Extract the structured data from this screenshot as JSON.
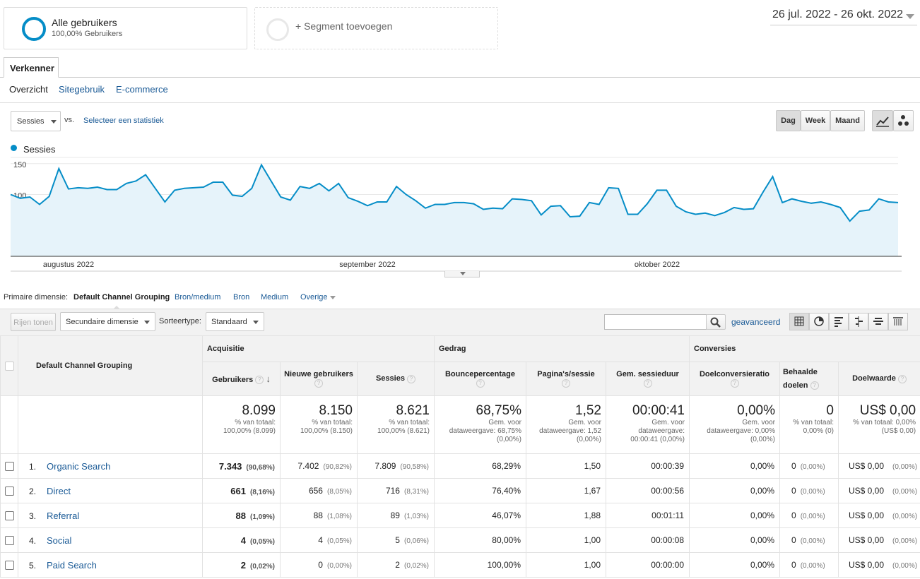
{
  "segments": {
    "all_title": "Alle gebruikers",
    "all_sub": "100,00% Gebruikers",
    "add_label": "+ Segment toevoegen"
  },
  "date_range": "26 jul. 2022 - 26 okt. 2022",
  "tab": "Verkenner",
  "subtabs": [
    "Overzicht",
    "Sitegebruik",
    "E-commerce"
  ],
  "chart_controls": {
    "metric": "Sessies",
    "vs": "vs.",
    "select_metric": "Selecteer een statistiek",
    "periods": [
      "Dag",
      "Week",
      "Maand"
    ],
    "active_period": "Dag"
  },
  "chart_data": {
    "type": "line",
    "series": [
      {
        "name": "Sessies",
        "color": "#058dc7",
        "values": [
          100,
          94,
          96,
          84,
          97,
          142,
          109,
          111,
          110,
          112,
          108,
          108,
          118,
          122,
          132,
          110,
          88,
          107,
          110,
          111,
          112,
          120,
          120,
          99,
          97,
          110,
          148,
          122,
          96,
          91,
          113,
          110,
          118,
          106,
          118,
          95,
          89,
          82,
          88,
          88,
          113,
          100,
          90,
          78,
          84,
          84,
          87,
          87,
          85,
          76,
          78,
          77,
          93,
          92,
          90,
          67,
          81,
          82,
          64,
          65,
          87,
          84,
          111,
          110,
          68,
          68,
          85,
          107,
          107,
          81,
          72,
          68,
          70,
          66,
          71,
          79,
          76,
          77,
          104,
          129,
          87,
          93,
          89,
          86,
          88,
          84,
          79,
          57,
          73,
          75,
          93,
          88,
          87
        ]
      }
    ],
    "x_labels": [
      "augustus 2022",
      "september 2022",
      "oktober 2022"
    ],
    "y_ticks": [
      50,
      100,
      150
    ],
    "ylim": [
      0,
      160
    ],
    "grid": true
  },
  "dimension": {
    "label": "Primaire dimensie:",
    "active": "Default Channel Grouping",
    "options": [
      "Bron/medium",
      "Bron",
      "Medium",
      "Overige"
    ]
  },
  "toolbar": {
    "show_rows": "Rijen tonen",
    "secondary": "Secundaire dimensie",
    "sort_label": "Sorteertype:",
    "sort_value": "Standaard",
    "advanced": "geavanceerd",
    "search_placeholder": ""
  },
  "table": {
    "dim_header": "Default Channel Grouping",
    "groups": [
      "Acquisitie",
      "Gedrag",
      "Conversies"
    ],
    "columns": [
      "Gebruikers",
      "Nieuwe gebruikers",
      "Sessies",
      "Bouncepercentage",
      "Pagina's/sessie",
      "Gem. sessieduur",
      "Doelconversieratio",
      "Behaalde doelen",
      "Doelwaarde"
    ],
    "totals": [
      {
        "v": "8.099",
        "s1": "% van totaal:",
        "s2": "100,00% (8.099)"
      },
      {
        "v": "8.150",
        "s1": "% van totaal:",
        "s2": "100,00% (8.150)"
      },
      {
        "v": "8.621",
        "s1": "% van totaal:",
        "s2": "100,00% (8.621)"
      },
      {
        "v": "68,75%",
        "s1": "Gem. voor",
        "s2": "dataweergave: 68,75%",
        "s3": "(0,00%)"
      },
      {
        "v": "1,52",
        "s1": "Gem. voor",
        "s2": "dataweergave: 1,52",
        "s3": "(0,00%)"
      },
      {
        "v": "00:00:41",
        "s1": "Gem. voor",
        "s2": "dataweergave:",
        "s3": "00:00:41 (0,00%)"
      },
      {
        "v": "0,00%",
        "s1": "Gem. voor",
        "s2": "dataweergave: 0,00%",
        "s3": "(0,00%)"
      },
      {
        "v": "0",
        "s1": "% van totaal:",
        "s2": "0,00% (0)"
      },
      {
        "v": "US$ 0,00",
        "s1": "% van totaal: 0,00%",
        "s2": "(US$ 0,00)"
      }
    ],
    "rows": [
      {
        "n": "1.",
        "name": "Organic Search",
        "users": "7.343",
        "users_p": "(90,68%)",
        "new": "7.402",
        "new_p": "(90,82%)",
        "sess": "7.809",
        "sess_p": "(90,58%)",
        "bounce": "68,29%",
        "pps": "1,50",
        "dur": "00:00:39",
        "conv": "0,00%",
        "goals": "0",
        "goals_p": "(0,00%)",
        "val": "US$ 0,00",
        "val_p": "(0,00%)"
      },
      {
        "n": "2.",
        "name": "Direct",
        "users": "661",
        "users_p": "(8,16%)",
        "new": "656",
        "new_p": "(8,05%)",
        "sess": "716",
        "sess_p": "(8,31%)",
        "bounce": "76,40%",
        "pps": "1,67",
        "dur": "00:00:56",
        "conv": "0,00%",
        "goals": "0",
        "goals_p": "(0,00%)",
        "val": "US$ 0,00",
        "val_p": "(0,00%)"
      },
      {
        "n": "3.",
        "name": "Referral",
        "users": "88",
        "users_p": "(1,09%)",
        "new": "88",
        "new_p": "(1,08%)",
        "sess": "89",
        "sess_p": "(1,03%)",
        "bounce": "46,07%",
        "pps": "1,88",
        "dur": "00:01:11",
        "conv": "0,00%",
        "goals": "0",
        "goals_p": "(0,00%)",
        "val": "US$ 0,00",
        "val_p": "(0,00%)"
      },
      {
        "n": "4.",
        "name": "Social",
        "users": "4",
        "users_p": "(0,05%)",
        "new": "4",
        "new_p": "(0,05%)",
        "sess": "5",
        "sess_p": "(0,06%)",
        "bounce": "80,00%",
        "pps": "1,00",
        "dur": "00:00:08",
        "conv": "0,00%",
        "goals": "0",
        "goals_p": "(0,00%)",
        "val": "US$ 0,00",
        "val_p": "(0,00%)"
      },
      {
        "n": "5.",
        "name": "Paid Search",
        "users": "2",
        "users_p": "(0,02%)",
        "new": "0",
        "new_p": "(0,00%)",
        "sess": "2",
        "sess_p": "(0,02%)",
        "bounce": "100,00%",
        "pps": "1,00",
        "dur": "00:00:00",
        "conv": "0,00%",
        "goals": "0",
        "goals_p": "(0,00%)",
        "val": "US$ 0,00",
        "val_p": "(0,00%)"
      }
    ]
  }
}
